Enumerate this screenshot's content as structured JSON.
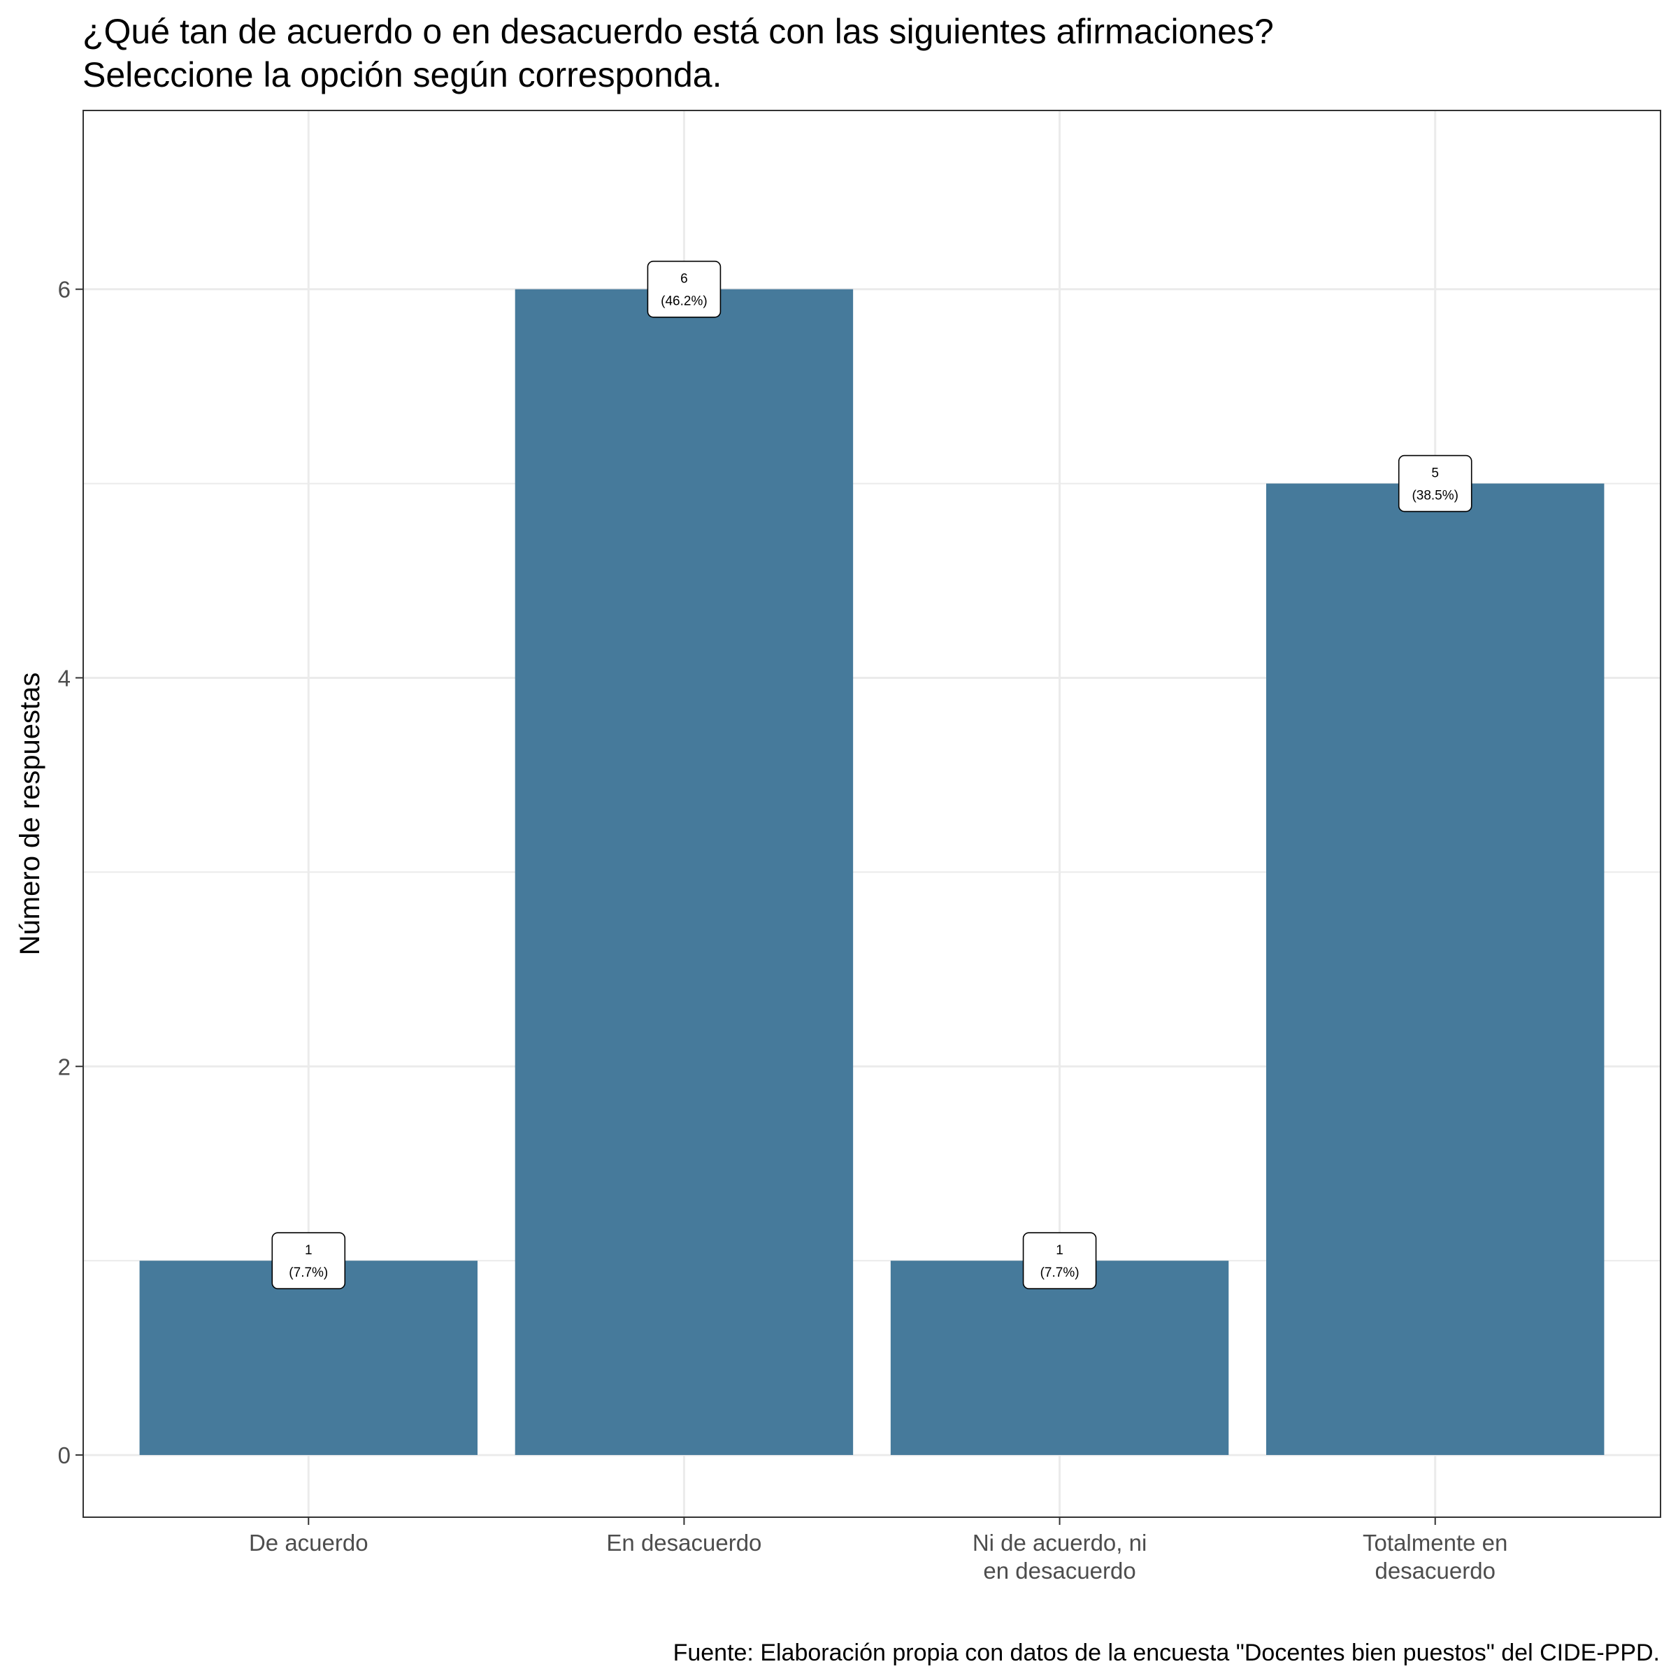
{
  "chart_data": {
    "type": "bar",
    "title": [
      "¿Qué tan de acuerdo o en desacuerdo está con las siguientes afirmaciones?",
      "Seleccione la opción según corresponda."
    ],
    "xlabel": "",
    "ylabel": "Número de respuestas",
    "categories": [
      [
        "De acuerdo"
      ],
      [
        "En desacuerdo"
      ],
      [
        "Ni de acuerdo, ni",
        "en desacuerdo"
      ],
      [
        "Totalmente en",
        "desacuerdo"
      ]
    ],
    "values": [
      1,
      6,
      1,
      5
    ],
    "data_labels": [
      [
        "1",
        "(7.7%)"
      ],
      [
        "6",
        "(46.2%)"
      ],
      [
        "1",
        "(7.7%)"
      ],
      [
        "5",
        "(38.5%)"
      ]
    ],
    "ylim": [
      -0.32,
      6.92
    ],
    "yticks": [
      0,
      2,
      4,
      6
    ],
    "ytick_labels": [
      "0",
      "2",
      "4",
      "6"
    ],
    "grid": true,
    "bar_color": "#467A9B",
    "caption": "Fuente: Elaboración propia con datos de la encuesta \"Docentes bien puestos\" del CIDE-PPD."
  }
}
